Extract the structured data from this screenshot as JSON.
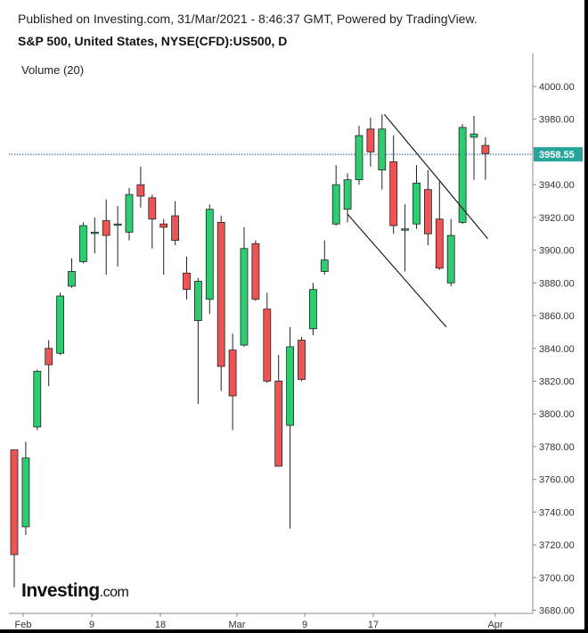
{
  "header": {
    "published": "Published on Investing.com, 31/Mar/2021 - 8:46:37 GMT, Powered by TradingView.",
    "title": "S&P 500, United States, NYSE(CFD):US500, D"
  },
  "indicator": "Volume (20)",
  "logo": {
    "main": "Investing",
    "suffix": ".com"
  },
  "colors": {
    "up": "#2ecc71",
    "down": "#ee5454",
    "last_price_line": "#2a4fa8",
    "price_badge": "#26a69a"
  },
  "chart_data": {
    "type": "candlestick",
    "title": "S&P 500, United States, NYSE(CFD):US500, D",
    "ylim": [
      3675,
      4020
    ],
    "y_ticks": [
      3680,
      3700,
      3720,
      3740,
      3760,
      3780,
      3800,
      3820,
      3840,
      3860,
      3880,
      3900,
      3920,
      3940,
      3960,
      3980,
      4000
    ],
    "x_ticks": [
      "Feb",
      "9",
      "18",
      "Mar",
      "9",
      "17",
      "Apr"
    ],
    "last_price": 3958.55,
    "last_price_label": "3958.55",
    "candles": [
      {
        "o": 3778,
        "h": 3778,
        "l": 3694,
        "c": 3714
      },
      {
        "o": 3731,
        "h": 3783,
        "l": 3726,
        "c": 3773
      },
      {
        "o": 3792,
        "h": 3827,
        "l": 3790,
        "c": 3826
      },
      {
        "o": 3840,
        "h": 3845,
        "l": 3817,
        "c": 3830
      },
      {
        "o": 3837,
        "h": 3874,
        "l": 3836,
        "c": 3872
      },
      {
        "o": 3878,
        "h": 3895,
        "l": 3877,
        "c": 3887
      },
      {
        "o": 3893,
        "h": 3917,
        "l": 3892,
        "c": 3915
      },
      {
        "o": 3911,
        "h": 3920,
        "l": 3898,
        "c": 3911
      },
      {
        "o": 3918,
        "h": 3931,
        "l": 3885,
        "c": 3909
      },
      {
        "o": 3916,
        "h": 3927,
        "l": 3890,
        "c": 3916
      },
      {
        "o": 3911,
        "h": 3938,
        "l": 3906,
        "c": 3934
      },
      {
        "o": 3940,
        "h": 3951,
        "l": 3926,
        "c": 3933
      },
      {
        "o": 3932,
        "h": 3934,
        "l": 3901,
        "c": 3919
      },
      {
        "o": 3916,
        "h": 3919,
        "l": 3885,
        "c": 3914
      },
      {
        "o": 3921,
        "h": 3930,
        "l": 3903,
        "c": 3906
      },
      {
        "o": 3886,
        "h": 3896,
        "l": 3870,
        "c": 3876
      },
      {
        "o": 3857,
        "h": 3883,
        "l": 3806,
        "c": 3881
      },
      {
        "o": 3870,
        "h": 3928,
        "l": 3861,
        "c": 3925
      },
      {
        "o": 3917,
        "h": 3921,
        "l": 3814,
        "c": 3829
      },
      {
        "o": 3839,
        "h": 3849,
        "l": 3790,
        "c": 3811
      },
      {
        "o": 3842,
        "h": 3914,
        "l": 3841,
        "c": 3901
      },
      {
        "o": 3904,
        "h": 3906,
        "l": 3869,
        "c": 3870
      },
      {
        "o": 3864,
        "h": 3874,
        "l": 3819,
        "c": 3820
      },
      {
        "o": 3820,
        "h": 3836,
        "l": 3768,
        "c": 3768
      },
      {
        "o": 3793,
        "h": 3853,
        "l": 3730,
        "c": 3841
      },
      {
        "o": 3845,
        "h": 3847,
        "l": 3820,
        "c": 3821
      },
      {
        "o": 3852,
        "h": 3880,
        "l": 3848,
        "c": 3876
      },
      {
        "o": 3887,
        "h": 3906,
        "l": 3885,
        "c": 3894
      },
      {
        "o": 3916,
        "h": 3952,
        "l": 3915,
        "c": 3940
      },
      {
        "o": 3925,
        "h": 3947,
        "l": 3917,
        "c": 3943
      },
      {
        "o": 3943,
        "h": 3976,
        "l": 3940,
        "c": 3970
      },
      {
        "o": 3974,
        "h": 3981,
        "l": 3951,
        "c": 3960
      },
      {
        "o": 3949,
        "h": 3983,
        "l": 3937,
        "c": 3974
      },
      {
        "o": 3954,
        "h": 3970,
        "l": 3910,
        "c": 3915
      },
      {
        "o": 3913,
        "h": 3928,
        "l": 3887,
        "c": 3913
      },
      {
        "o": 3916,
        "h": 3952,
        "l": 3913,
        "c": 3941
      },
      {
        "o": 3937,
        "h": 3949,
        "l": 3903,
        "c": 3910
      },
      {
        "o": 3919,
        "h": 3942,
        "l": 3888,
        "c": 3889
      },
      {
        "o": 3880,
        "h": 3919,
        "l": 3878,
        "c": 3909
      },
      {
        "o": 3917,
        "h": 3977,
        "l": 3916,
        "c": 3975
      },
      {
        "o": 3969,
        "h": 3982,
        "l": 3943,
        "c": 3971
      },
      {
        "o": 3964,
        "h": 3969,
        "l": 3943,
        "c": 3959
      }
    ],
    "trendlines": [
      {
        "from": {
          "i": 32.2,
          "v": 3983
        },
        "to": {
          "i": 41.2,
          "v": 3907
        }
      },
      {
        "from": {
          "i": 29.0,
          "v": 3922
        },
        "to": {
          "i": 37.6,
          "v": 3853
        }
      }
    ]
  }
}
